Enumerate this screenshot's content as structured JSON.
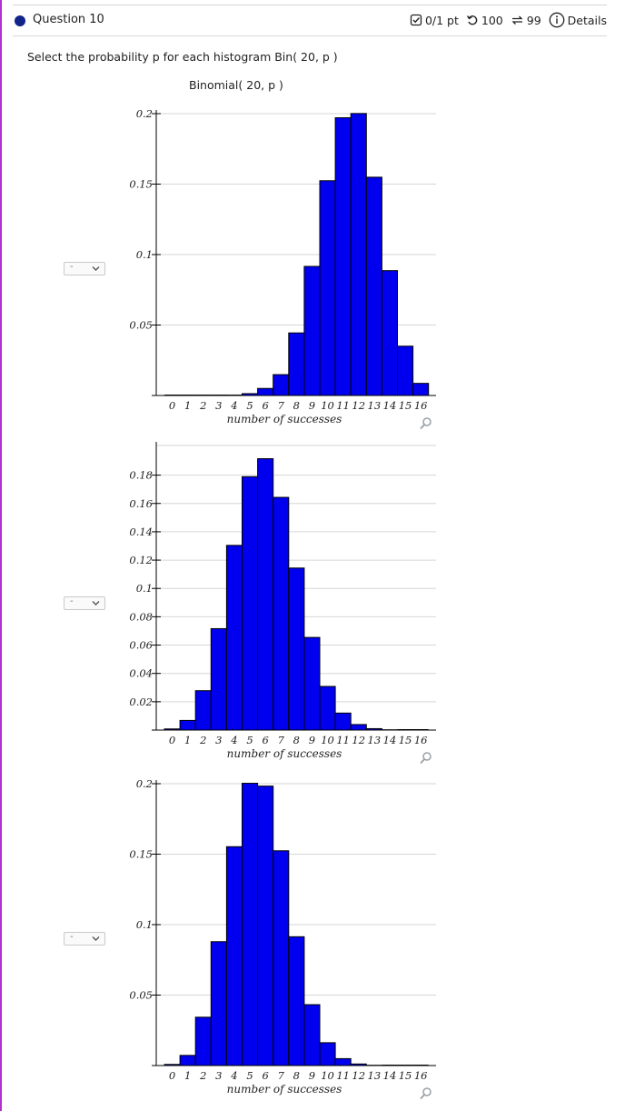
{
  "question": {
    "title": "Question 10",
    "score": "0/1 pt",
    "retries": "100",
    "attempts": "99",
    "details_label": "Details"
  },
  "prompt": "Select the probability p for each histogram Bin( 20, p )",
  "graph_title": "Binomial( 20, p )",
  "selectors": [
    {
      "value": "-"
    },
    {
      "value": "-"
    },
    {
      "value": "-"
    }
  ],
  "icons": {
    "score": "checkbox-icon",
    "retry": "retry-icon",
    "attempts": "sync-icon",
    "details": "info-icon",
    "zoom": "magnifier-icon",
    "select": "chevron-down-icon"
  },
  "colors": {
    "bar": "#0000ee",
    "bar_edge": "#000000",
    "accent": "#12238a"
  },
  "chart_data": [
    {
      "type": "bar",
      "xlabel": "number of successes",
      "categories": [
        "0",
        "1",
        "2",
        "3",
        "4",
        "5",
        "6",
        "7",
        "8",
        "9",
        "10",
        "11",
        "12",
        "13",
        "14",
        "15",
        "16"
      ],
      "values": [
        0,
        0,
        0,
        0,
        0.0003,
        0.0013,
        0.005,
        0.0148,
        0.0444,
        0.0916,
        0.1524,
        0.1971,
        0.2001,
        0.1549,
        0.0886,
        0.035,
        0.0086
      ],
      "yticks": [
        0.05,
        0.1,
        0.15,
        0.2
      ],
      "ylim": [
        0,
        0.2
      ]
    },
    {
      "type": "bar",
      "xlabel": "number of successes",
      "categories": [
        "0",
        "1",
        "2",
        "3",
        "4",
        "5",
        "6",
        "7",
        "8",
        "9",
        "10",
        "11",
        "12",
        "13",
        "14",
        "15",
        "16"
      ],
      "values": [
        0.0008,
        0.0068,
        0.0278,
        0.0716,
        0.1304,
        0.1789,
        0.1916,
        0.1643,
        0.1144,
        0.0654,
        0.0308,
        0.012,
        0.0039,
        0.001,
        0.0002,
        0,
        0
      ],
      "yticks": [
        0.02,
        0.04,
        0.06,
        0.08,
        0.1,
        0.12,
        0.14,
        0.16,
        0.18
      ],
      "ylim": [
        0,
        0.199
      ]
    },
    {
      "type": "bar",
      "xlabel": "number of successes",
      "categories": [
        "0",
        "1",
        "2",
        "3",
        "4",
        "5",
        "6",
        "7",
        "8",
        "9",
        "10",
        "11",
        "12",
        "13",
        "14",
        "15",
        "16"
      ],
      "values": [
        0.0008,
        0.0072,
        0.0343,
        0.0879,
        0.1553,
        0.2003,
        0.1983,
        0.1524,
        0.0914,
        0.0432,
        0.0162,
        0.0049,
        0.0011,
        0.0002,
        0,
        0,
        0
      ],
      "yticks": [
        0.05,
        0.1,
        0.15,
        0.2
      ],
      "ylim": [
        0,
        0.2
      ]
    }
  ]
}
